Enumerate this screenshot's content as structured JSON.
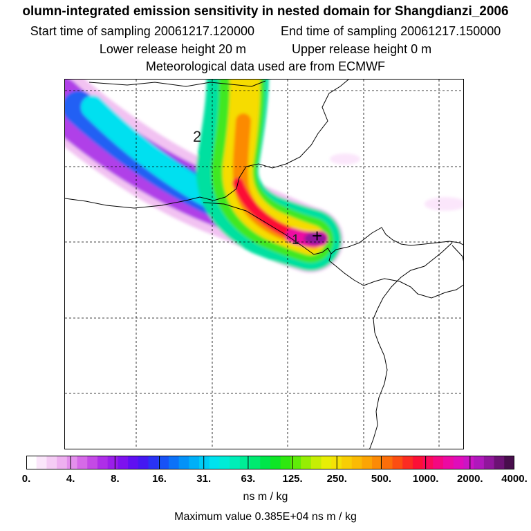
{
  "header": {
    "title": "olumn-integrated emission sensitivity in nested domain for Shangdianzi_2006",
    "start_time": "Start time of sampling 20061217.120000",
    "end_time": "End time of sampling 20061217.150000",
    "lower_height": "Lower release height   20 m",
    "upper_height": "Upper release height    0 m",
    "met_data": "Meteorological data used are from ECMWF"
  },
  "map": {
    "contour_labels": [
      "2",
      "1"
    ],
    "release_marker": "+"
  },
  "colorbar": {
    "tick_labels": [
      "0.",
      "4.",
      "8.",
      "16.",
      "31.",
      "63.",
      "125.",
      "250.",
      "500.",
      "1000.",
      "2000.",
      "4000."
    ],
    "colors": [
      "#ffffff",
      "#fbe6fb",
      "#f5ccf5",
      "#eeb0f0",
      "#e38fec",
      "#d66ae8",
      "#c44ae6",
      "#ae2ee8",
      "#9a1eea",
      "#7d12ee",
      "#5f10f2",
      "#4418f2",
      "#2a32f4",
      "#1852f6",
      "#0c72f8",
      "#0492f8",
      "#00b0f8",
      "#00ccf6",
      "#00e2ee",
      "#00ecd6",
      "#00eeb8",
      "#00ee96",
      "#00ea70",
      "#00e64a",
      "#0ee626",
      "#2ee810",
      "#60ec08",
      "#96ee04",
      "#c6ee04",
      "#e8ee06",
      "#f4e206",
      "#f8ce04",
      "#faba04",
      "#fca404",
      "#fc8a06",
      "#fc6e0a",
      "#fc4e12",
      "#fc2c22",
      "#fc1036",
      "#fa0a5a",
      "#f40880",
      "#ec0aa2",
      "#e00cba",
      "#cc14c4",
      "#b018bc",
      "#90169c",
      "#6c1274",
      "#480e4c"
    ],
    "unit": "ns m / kg",
    "max_value": "Maximum value  0.385E+04 ns m / kg"
  }
}
